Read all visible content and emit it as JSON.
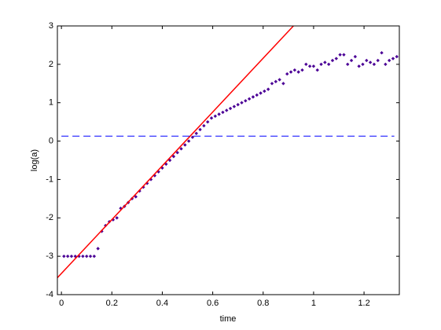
{
  "chart_data": {
    "type": "scatter",
    "xlabel": "time",
    "ylabel": "log(a)",
    "xlim": [
      -0.016,
      1.34
    ],
    "ylim": [
      -4,
      3
    ],
    "xticks": [
      0,
      0.2,
      0.4,
      0.6,
      0.8,
      1,
      1.2
    ],
    "yticks": [
      -4,
      -3,
      -2,
      -1,
      0,
      1,
      2,
      3
    ],
    "grid": false,
    "series": [
      {
        "type": "scatter",
        "color": "#4b0096",
        "x": [
          0.01,
          0.025,
          0.04,
          0.055,
          0.07,
          0.085,
          0.1,
          0.115,
          0.13,
          0.145,
          0.16,
          0.175,
          0.19,
          0.205,
          0.22,
          0.235,
          0.25,
          0.265,
          0.28,
          0.295,
          0.31,
          0.325,
          0.34,
          0.355,
          0.37,
          0.385,
          0.4,
          0.415,
          0.43,
          0.445,
          0.46,
          0.475,
          0.49,
          0.505,
          0.52,
          0.535,
          0.55,
          0.565,
          0.58,
          0.595,
          0.61,
          0.625,
          0.64,
          0.655,
          0.67,
          0.685,
          0.7,
          0.715,
          0.73,
          0.745,
          0.76,
          0.775,
          0.79,
          0.805,
          0.82,
          0.835,
          0.85,
          0.865,
          0.88,
          0.895,
          0.91,
          0.925,
          0.94,
          0.955,
          0.97,
          0.985,
          1.0,
          1.015,
          1.03,
          1.045,
          1.06,
          1.075,
          1.09,
          1.105,
          1.12,
          1.135,
          1.15,
          1.165,
          1.18,
          1.195,
          1.21,
          1.225,
          1.24,
          1.255,
          1.27,
          1.285,
          1.3,
          1.315,
          1.33
        ],
        "values": [
          -3,
          -3,
          -3,
          -3,
          -3,
          -3,
          -3,
          -3,
          -3,
          -2.8,
          -2.35,
          -2.2,
          -2.1,
          -2.05,
          -2.0,
          -1.75,
          -1.7,
          -1.6,
          -1.5,
          -1.45,
          -1.3,
          -1.2,
          -1.1,
          -1.0,
          -0.9,
          -0.8,
          -0.7,
          -0.6,
          -0.5,
          -0.4,
          -0.3,
          -0.2,
          -0.1,
          0.0,
          0.1,
          0.2,
          0.3,
          0.4,
          0.5,
          0.6,
          0.65,
          0.7,
          0.75,
          0.8,
          0.85,
          0.9,
          0.95,
          1.0,
          1.05,
          1.1,
          1.15,
          1.2,
          1.25,
          1.3,
          1.35,
          1.5,
          1.55,
          1.6,
          1.5,
          1.75,
          1.8,
          1.85,
          1.8,
          1.85,
          2.0,
          1.95,
          1.95,
          1.85,
          2.0,
          2.05,
          2.0,
          2.1,
          2.15,
          2.25,
          2.25,
          2.0,
          2.1,
          2.2,
          1.95,
          2.0,
          2.1,
          2.05,
          2.0,
          2.1,
          2.3,
          2.0,
          2.1,
          2.15,
          2.2
        ]
      },
      {
        "type": "line",
        "color": "#ff0000",
        "dash": false,
        "x": [
          -0.016,
          0.92
        ],
        "values": [
          -3.56,
          3
        ]
      },
      {
        "type": "line",
        "color": "#0000ff",
        "dash": true,
        "x": [
          0,
          1.32
        ],
        "values": [
          0.13,
          0.13
        ]
      }
    ]
  }
}
